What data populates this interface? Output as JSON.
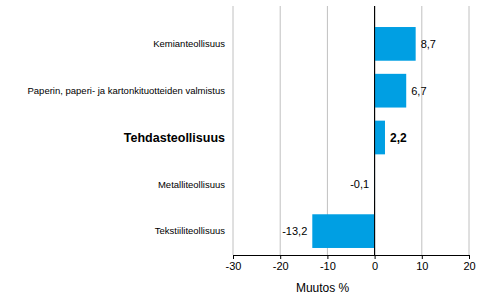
{
  "chart_data": {
    "type": "bar",
    "orientation": "horizontal",
    "categories": [
      "Kemianteollisuus",
      "Paperin, paperi- ja kartonkituotteiden valmistus",
      "Tehdasteollisuus",
      "Metalliteollisuus",
      "Tekstiiliteollisuus"
    ],
    "values": [
      8.7,
      6.7,
      2.2,
      -0.1,
      -13.2
    ],
    "value_labels": [
      "8,7",
      "6,7",
      "2,2",
      "-0,1",
      "-13,2"
    ],
    "data_labels": true,
    "color": "#009fe3",
    "x_label": "Muutos %",
    "xlim": [
      -30,
      20
    ],
    "xticks": [
      -30,
      -20,
      -10,
      0,
      10,
      20
    ],
    "grid": true
  }
}
